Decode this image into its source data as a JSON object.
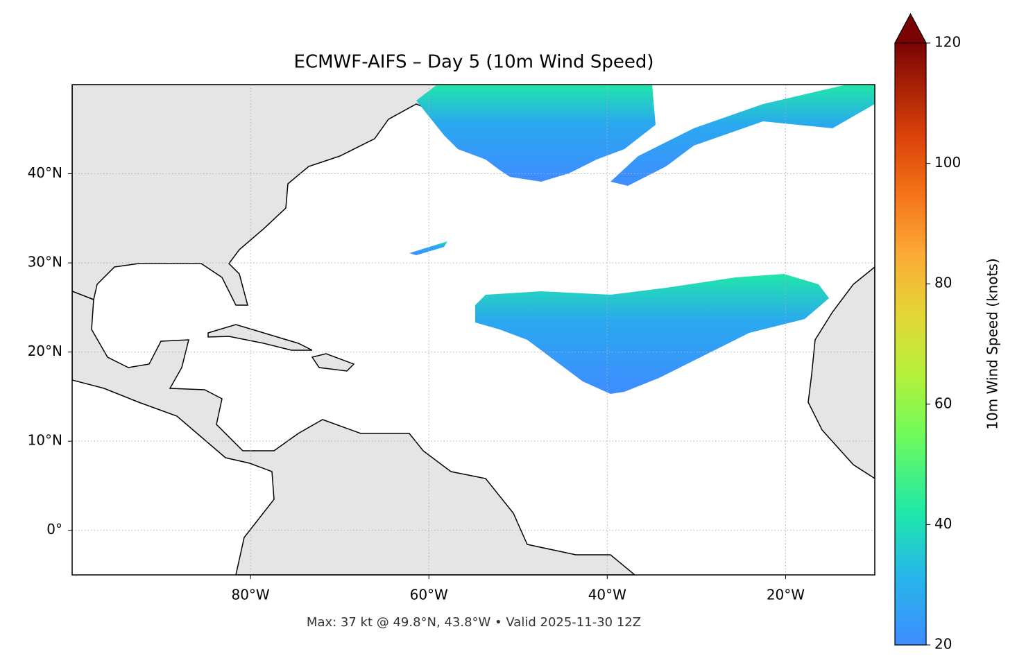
{
  "map": {
    "title": "ECMWF-AIFS – Day 5 (10m Wind Speed)",
    "footer": "Max: 37 kt @ 49.8°N, 43.8°W • Valid 2025-11-30 12Z",
    "xlim": [
      -100,
      -10
    ],
    "ylim": [
      -5,
      50
    ],
    "xticks": [
      {
        "value": -80,
        "label": "80°W"
      },
      {
        "value": -60,
        "label": "60°W"
      },
      {
        "value": -40,
        "label": "40°W"
      },
      {
        "value": -20,
        "label": "20°W"
      }
    ],
    "yticks": [
      {
        "value": 0,
        "label": "0°"
      },
      {
        "value": 10,
        "label": "10°N"
      },
      {
        "value": 20,
        "label": "20°N"
      },
      {
        "value": 30,
        "label": "30°N"
      },
      {
        "value": 40,
        "label": "40°N"
      }
    ],
    "grid": true,
    "colorbar": {
      "label": "10m Wind Speed (knots)",
      "lim": [
        20,
        120
      ],
      "ticks": [
        20,
        40,
        60,
        80,
        100,
        120
      ],
      "extend": "max"
    }
  }
}
